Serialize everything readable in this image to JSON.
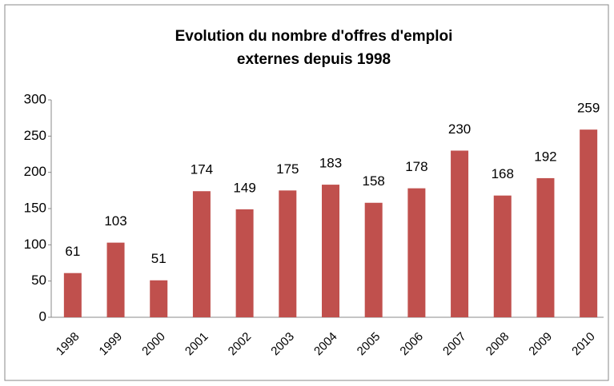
{
  "chart_data": {
    "type": "bar",
    "title": [
      "Evolution du nombre d'offres d'emploi",
      "externes depuis 1998"
    ],
    "categories": [
      "1998",
      "1999",
      "2000",
      "2001",
      "2002",
      "2003",
      "2004",
      "2005",
      "2006",
      "2007",
      "2008",
      "2009",
      "2010"
    ],
    "values": [
      61,
      103,
      51,
      174,
      149,
      175,
      183,
      158,
      178,
      230,
      168,
      192,
      259
    ],
    "color": "#c0504d",
    "ylim": [
      0,
      300
    ],
    "yticks": [
      0,
      50,
      100,
      150,
      200,
      250,
      300
    ],
    "grid": false
  }
}
